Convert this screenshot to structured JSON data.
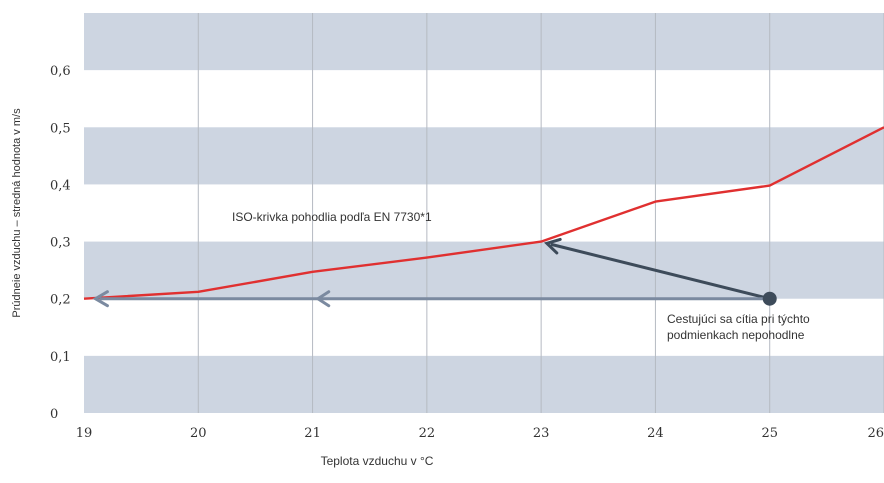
{
  "chart_data": {
    "type": "line",
    "title": "",
    "xlabel": "Teplota vzduchu v °C",
    "ylabel": "Prúdneie vzduchu – stredná hodnota v m/s",
    "xlim": [
      19,
      26
    ],
    "ylim": [
      0,
      0.7
    ],
    "x_ticks": [
      19,
      20,
      21,
      22,
      23,
      24,
      25,
      26
    ],
    "x_tick_labels": [
      "19",
      "20",
      "21",
      "22",
      "23",
      "24",
      "25",
      "26"
    ],
    "y_ticks": [
      0,
      0.1,
      0.2,
      0.3,
      0.4,
      0.5,
      0.6
    ],
    "y_tick_labels": [
      "0",
      "0,1",
      "0,2",
      "0,3",
      "0,4",
      "0,5",
      "0,6"
    ],
    "grid": true,
    "series": [
      {
        "name": "ISO-krivka pohodlia podľa EN 7730*1",
        "color": "#e03030",
        "x": [
          19,
          20,
          21,
          22,
          23,
          24,
          25,
          26
        ],
        "y": [
          0.2,
          0.212,
          0.247,
          0.272,
          0.3,
          0.37,
          0.398,
          0.5
        ]
      }
    ],
    "annotations": [
      {
        "type": "point",
        "x": 25,
        "y": 0.2,
        "color": "#3d4b5a",
        "text": [
          "Cestujúci sa cítia pri týchto",
          "podmienkach nepohodlne"
        ]
      },
      {
        "type": "arrow",
        "from": [
          25,
          0.2
        ],
        "to": [
          23.05,
          0.297
        ],
        "color": "#3d4b5a"
      },
      {
        "type": "arrow",
        "from": [
          25,
          0.2
        ],
        "to": [
          19.1,
          0.2
        ],
        "color": "#7b8aa0"
      }
    ],
    "colors": {
      "band": "#cdd5e1",
      "vgrid": "#b5bac2",
      "line": "#e03030",
      "arrow_dark": "#3d4b5a",
      "arrow_light": "#7b8aa0"
    }
  }
}
